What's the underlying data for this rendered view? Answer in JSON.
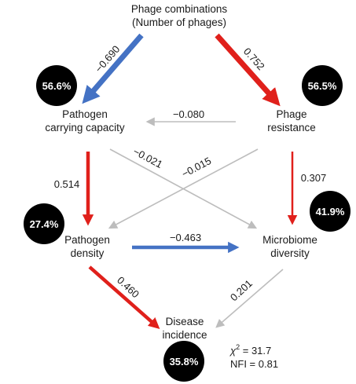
{
  "nodes": {
    "phage_combinations": {
      "line1": "Phage combinations",
      "line2": "(Number of phages)"
    },
    "pathogen_carrying_capacity": {
      "line1": "Pathogen",
      "line2": "carrying capacity",
      "r2": "56.6%"
    },
    "phage_resistance": {
      "line1": "Phage",
      "line2": "resistance",
      "r2": "56.5%"
    },
    "pathogen_density": {
      "line1": "Pathogen",
      "line2": "density",
      "r2": "27.4%"
    },
    "microbiome_diversity": {
      "line1": "Microbiome",
      "line2": "diversity",
      "r2": "41.9%"
    },
    "disease_incidence": {
      "line1": "Disease",
      "line2": "incidence",
      "r2": "35.8%"
    }
  },
  "paths": [
    {
      "id": "combos-to-capacity",
      "from": "Phage combinations",
      "to": "Pathogen carrying capacity",
      "coefficient": "−0.690",
      "sign": "negative"
    },
    {
      "id": "combos-to-resistance",
      "from": "Phage combinations",
      "to": "Phage resistance",
      "coefficient": "0.752",
      "sign": "positive"
    },
    {
      "id": "resistance-to-capacity",
      "from": "Phage resistance",
      "to": "Pathogen carrying capacity",
      "coefficient": "−0.080",
      "sign": "nonsignificant"
    },
    {
      "id": "capacity-to-diversity",
      "from": "Pathogen carrying capacity",
      "to": "Microbiome diversity",
      "coefficient": "−0.021",
      "sign": "nonsignificant"
    },
    {
      "id": "resistance-to-density",
      "from": "Phage resistance",
      "to": "Pathogen density",
      "coefficient": "−0.015",
      "sign": "nonsignificant"
    },
    {
      "id": "capacity-to-density",
      "from": "Pathogen carrying capacity",
      "to": "Pathogen density",
      "coefficient": "0.514",
      "sign": "positive"
    },
    {
      "id": "resistance-to-diversity",
      "from": "Phage resistance",
      "to": "Microbiome diversity",
      "coefficient": "0.307",
      "sign": "positive"
    },
    {
      "id": "density-to-diversity",
      "from": "Pathogen density",
      "to": "Microbiome diversity",
      "coefficient": "−0.463",
      "sign": "negative"
    },
    {
      "id": "density-to-incidence",
      "from": "Pathogen density",
      "to": "Disease incidence",
      "coefficient": "0.460",
      "sign": "positive"
    },
    {
      "id": "diversity-to-incidence",
      "from": "Microbiome diversity",
      "to": "Disease incidence",
      "coefficient": "0.201",
      "sign": "nonsignificant"
    }
  ],
  "fit": {
    "chi_symbol": "χ",
    "chi_power": "2",
    "chi_value": " = 31.7",
    "nfi": "NFI = 0.81"
  },
  "colors": {
    "positive": "#e0201b",
    "negative": "#4472c4",
    "nonsignificant": "#bdbdbd",
    "r2_circle": "#000000"
  }
}
